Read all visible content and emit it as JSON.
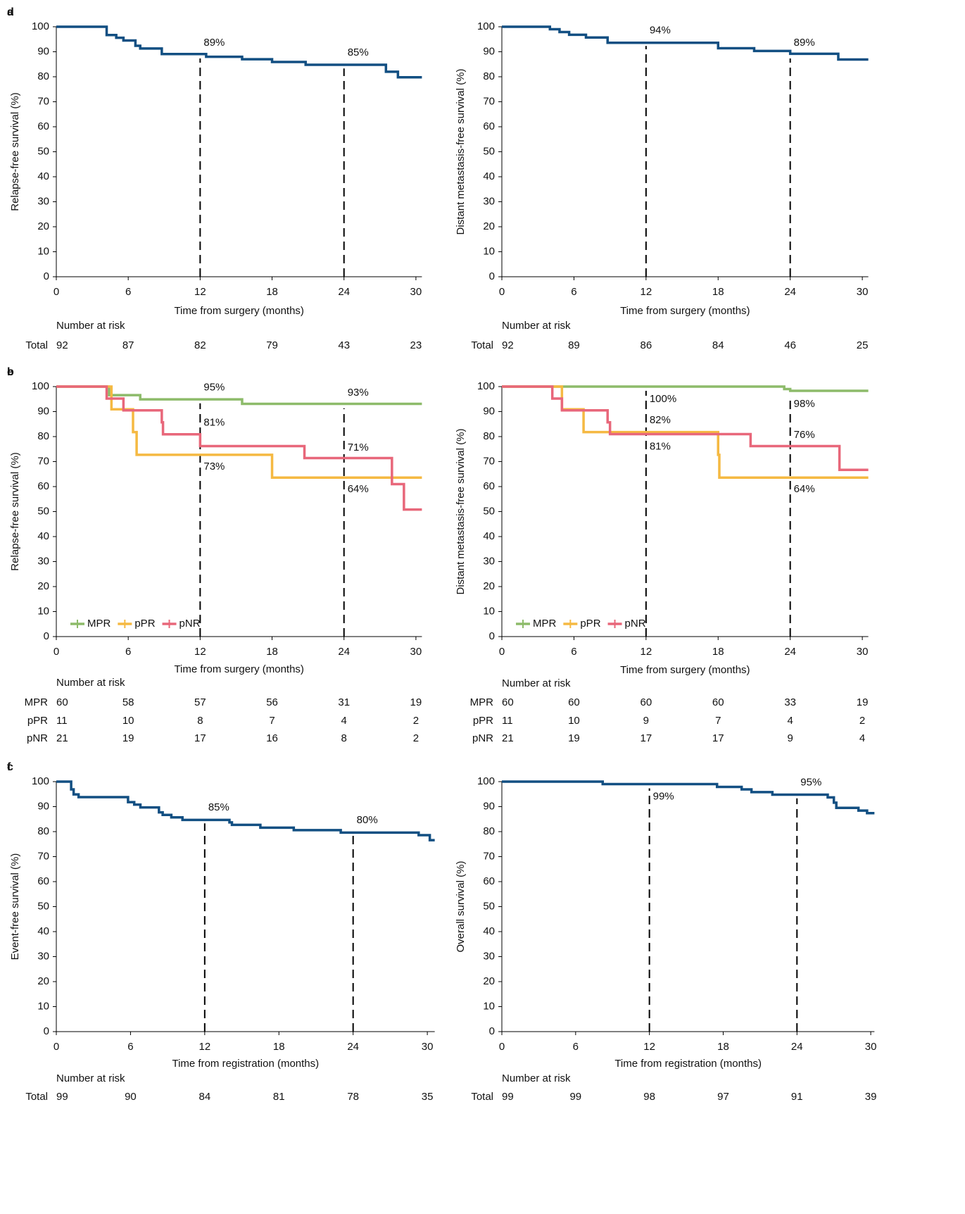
{
  "chart_data": [
    {
      "type": "line",
      "step": true,
      "panel": "a",
      "ylabel": "Relapse-free survival (%)",
      "xlabel": "Time from surgery (months)",
      "xlim": [
        0,
        30.5
      ],
      "ylim": [
        0,
        100
      ],
      "xticks": [
        0,
        6,
        12,
        18,
        24,
        30
      ],
      "yticks": [
        0,
        10,
        20,
        30,
        40,
        50,
        60,
        70,
        80,
        90,
        100
      ],
      "reference_x": [
        12,
        24
      ],
      "series": [
        {
          "name": "Total",
          "color": "#124f82",
          "x": [
            0,
            4.2,
            5,
            5.6,
            6.6,
            7,
            8.8,
            12.5,
            15.5,
            18,
            20.8,
            27.5,
            28.5,
            30.5
          ],
          "values": [
            100,
            96.7,
            95.6,
            94.5,
            92.4,
            91.3,
            89.1,
            88,
            87,
            85.9,
            84.8,
            82,
            79.8,
            79.8
          ]
        }
      ],
      "annotations": [
        {
          "series": 0,
          "x": 12,
          "y": 89,
          "label": "89%",
          "position": "above"
        },
        {
          "series": 0,
          "x": 24,
          "y": 85,
          "label": "85%",
          "position": "above"
        }
      ],
      "risk_table": {
        "title": "Number at risk",
        "rows": [
          {
            "name": "Total",
            "color": "#124f82",
            "values": [
              92,
              87,
              82,
              79,
              43,
              23
            ]
          }
        ]
      }
    },
    {
      "type": "line",
      "step": true,
      "panel": "b",
      "ylabel": "Relapse-free survival (%)",
      "xlabel": "Time from surgery (months)",
      "xlim": [
        0,
        30.5
      ],
      "ylim": [
        0,
        100
      ],
      "xticks": [
        0,
        6,
        12,
        18,
        24,
        30
      ],
      "yticks": [
        0,
        10,
        20,
        30,
        40,
        50,
        60,
        70,
        80,
        90,
        100
      ],
      "reference_x": [
        12,
        24
      ],
      "legend": "lower left",
      "series": [
        {
          "name": "MPR",
          "color": "#8dbb6a",
          "x": [
            0,
            4.4,
            7,
            15.5,
            30.5
          ],
          "values": [
            100,
            96.6,
            94.9,
            93.1,
            93.1
          ]
        },
        {
          "name": "pPR",
          "color": "#f5b942",
          "x": [
            0,
            4.6,
            6.4,
            6.7,
            18,
            30.5
          ],
          "values": [
            100,
            90.9,
            81.8,
            72.7,
            63.6,
            63.6
          ]
        },
        {
          "name": "pNR",
          "color": "#e8677a",
          "x": [
            0,
            4.2,
            5.6,
            8.8,
            8.9,
            12,
            20.7,
            28,
            29,
            30.5
          ],
          "values": [
            100,
            95.2,
            90.5,
            85.7,
            80.9,
            76.2,
            71.4,
            61,
            50.8,
            50.8
          ]
        }
      ],
      "annotations": [
        {
          "series": 0,
          "x": 12,
          "y": 95,
          "label": "95%",
          "position": "above"
        },
        {
          "series": 0,
          "x": 24,
          "y": 93,
          "label": "93%",
          "position": "above"
        },
        {
          "series": 2,
          "x": 12,
          "y": 81,
          "label": "81%",
          "position": "above"
        },
        {
          "series": 2,
          "x": 24,
          "y": 71,
          "label": "71%",
          "position": "above"
        },
        {
          "series": 1,
          "x": 12,
          "y": 73,
          "label": "73%",
          "position": "below"
        },
        {
          "series": 1,
          "x": 24,
          "y": 64,
          "label": "64%",
          "position": "below"
        }
      ],
      "risk_table": {
        "title": "Number at risk",
        "rows": [
          {
            "name": "MPR",
            "color": "#8dbb6a",
            "values": [
              60,
              58,
              57,
              56,
              31,
              19
            ]
          },
          {
            "name": "pPR",
            "color": "#f5b942",
            "values": [
              11,
              10,
              8,
              7,
              4,
              2
            ]
          },
          {
            "name": "pNR",
            "color": "#e8677a",
            "values": [
              21,
              19,
              17,
              16,
              8,
              2
            ]
          }
        ]
      }
    },
    {
      "type": "line",
      "step": true,
      "panel": "c",
      "ylabel": "Event-free survival (%)",
      "xlabel": "Time from registration (months)",
      "xlim": [
        0,
        30.6
      ],
      "ylim": [
        0,
        100
      ],
      "xticks": [
        0,
        6,
        12,
        18,
        24,
        30
      ],
      "yticks": [
        0,
        10,
        20,
        30,
        40,
        50,
        60,
        70,
        80,
        90,
        100
      ],
      "reference_x": [
        12,
        24
      ],
      "series": [
        {
          "name": "Total",
          "color": "#124f82",
          "x": [
            0,
            1.2,
            1.4,
            1.8,
            5.8,
            6.3,
            6.8,
            8.3,
            8.6,
            9.3,
            10.2,
            14,
            14.2,
            16.5,
            19.2,
            23,
            29.3,
            30.2,
            30.6
          ],
          "values": [
            100,
            96.9,
            94.9,
            93.8,
            91.8,
            90.8,
            89.7,
            87.7,
            86.7,
            85.7,
            84.7,
            83.7,
            82.7,
            81.6,
            80.6,
            79.6,
            78.6,
            76.6,
            76.6
          ]
        }
      ],
      "annotations": [
        {
          "series": 0,
          "x": 12,
          "y": 85,
          "label": "85%",
          "position": "above"
        },
        {
          "series": 0,
          "x": 24,
          "y": 80,
          "label": "80%",
          "position": "above"
        }
      ],
      "risk_table": {
        "title": "Number at risk",
        "rows": [
          {
            "name": "Total",
            "color": "#124f82",
            "values": [
              99,
              90,
              84,
              81,
              78,
              35
            ]
          }
        ]
      }
    },
    {
      "type": "line",
      "step": true,
      "panel": "d",
      "ylabel": "Distant metastasis-free survival (%)",
      "xlabel": "Time from surgery (months)",
      "xlim": [
        0,
        30.5
      ],
      "ylim": [
        0,
        100
      ],
      "xticks": [
        0,
        6,
        12,
        18,
        24,
        30
      ],
      "yticks": [
        0,
        10,
        20,
        30,
        40,
        50,
        60,
        70,
        80,
        90,
        100
      ],
      "reference_x": [
        12,
        24
      ],
      "series": [
        {
          "name": "Total",
          "color": "#124f82",
          "x": [
            0,
            4,
            4.8,
            5.6,
            7,
            8.8,
            18,
            21,
            24,
            28,
            30.5
          ],
          "values": [
            100,
            99,
            97.9,
            96.8,
            95.7,
            93.6,
            91.4,
            90.3,
            89.2,
            86.9,
            86.9
          ]
        }
      ],
      "annotations": [
        {
          "series": 0,
          "x": 12,
          "y": 94,
          "label": "94%",
          "position": "above"
        },
        {
          "series": 0,
          "x": 24,
          "y": 89,
          "label": "89%",
          "position": "above"
        }
      ],
      "risk_table": {
        "title": "Number at risk",
        "rows": [
          {
            "name": "Total",
            "color": "#124f82",
            "values": [
              92,
              89,
              86,
              84,
              46,
              25
            ]
          }
        ]
      }
    },
    {
      "type": "line",
      "step": true,
      "panel": "e",
      "ylabel": "Distant metastasis-free survival (%)",
      "xlabel": "Time from surgery (months)",
      "xlim": [
        0,
        30.5
      ],
      "ylim": [
        0,
        100
      ],
      "xticks": [
        0,
        6,
        12,
        18,
        24,
        30
      ],
      "yticks": [
        0,
        10,
        20,
        30,
        40,
        50,
        60,
        70,
        80,
        90,
        100
      ],
      "reference_x": [
        12,
        24
      ],
      "legend": "lower left",
      "series": [
        {
          "name": "MPR",
          "color": "#8dbb6a",
          "x": [
            0,
            23.5,
            24,
            30.5
          ],
          "values": [
            100,
            99,
            98.3,
            98.3
          ]
        },
        {
          "name": "pPR",
          "color": "#f5b942",
          "x": [
            0,
            5,
            6.8,
            18,
            18.1,
            30.5
          ],
          "values": [
            100,
            90.9,
            81.8,
            72.7,
            63.6,
            63.6
          ]
        },
        {
          "name": "pNR",
          "color": "#e8677a",
          "x": [
            0,
            4.2,
            5,
            8.8,
            9,
            20.7,
            28.1,
            30.5
          ],
          "values": [
            100,
            95.2,
            90.5,
            85.7,
            81,
            76.2,
            66.7,
            66.7
          ]
        }
      ],
      "annotations": [
        {
          "series": 0,
          "x": 12,
          "y": 100,
          "label": "100%",
          "position": "below"
        },
        {
          "series": 0,
          "x": 24,
          "y": 98,
          "label": "98%",
          "position": "below"
        },
        {
          "series": 1,
          "x": 12,
          "y": 82,
          "label": "82%",
          "position": "above"
        },
        {
          "series": 1,
          "x": 24,
          "y": 64,
          "label": "64%",
          "position": "below"
        },
        {
          "series": 2,
          "x": 12,
          "y": 81,
          "label": "81%",
          "position": "below"
        },
        {
          "series": 2,
          "x": 24,
          "y": 76,
          "label": "76%",
          "position": "above"
        }
      ],
      "risk_table": {
        "title": "Number at risk",
        "rows": [
          {
            "name": "MPR",
            "color": "#8dbb6a",
            "values": [
              60,
              60,
              60,
              60,
              33,
              19
            ]
          },
          {
            "name": "pPR",
            "color": "#f5b942",
            "values": [
              11,
              10,
              9,
              7,
              4,
              2
            ]
          },
          {
            "name": "pNR",
            "color": "#e8677a",
            "values": [
              21,
              19,
              17,
              17,
              9,
              4
            ]
          }
        ]
      }
    },
    {
      "type": "line",
      "step": true,
      "panel": "f",
      "ylabel": "Overall survival (%)",
      "xlabel": "Time from registration (months)",
      "xlim": [
        0,
        30.3
      ],
      "ylim": [
        0,
        100
      ],
      "xticks": [
        0,
        6,
        12,
        18,
        24,
        30
      ],
      "yticks": [
        0,
        10,
        20,
        30,
        40,
        50,
        60,
        70,
        80,
        90,
        100
      ],
      "reference_x": [
        12,
        24
      ],
      "series": [
        {
          "name": "Total",
          "color": "#124f82",
          "x": [
            0,
            8.2,
            17.5,
            19.5,
            20.3,
            22,
            26.5,
            27,
            27.2,
            29,
            29.7,
            30.3
          ],
          "values": [
            100,
            99,
            97.9,
            96.9,
            95.8,
            94.8,
            93.7,
            91.6,
            89.5,
            88.4,
            87.4,
            87.4
          ]
        }
      ],
      "annotations": [
        {
          "series": 0,
          "x": 12,
          "y": 99,
          "label": "99%",
          "position": "below"
        },
        {
          "series": 0,
          "x": 24,
          "y": 95,
          "label": "95%",
          "position": "above"
        }
      ],
      "risk_table": {
        "title": "Number at risk",
        "rows": [
          {
            "name": "Total",
            "color": "#124f82",
            "values": [
              99,
              99,
              98,
              97,
              91,
              39
            ]
          }
        ]
      }
    }
  ]
}
